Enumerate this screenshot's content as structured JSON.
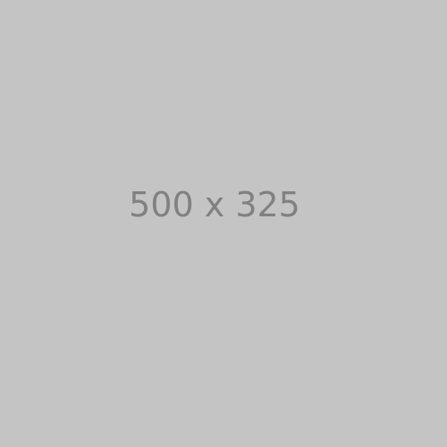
{
  "placeholder": {
    "label": "500 x 325",
    "background_color": "#c4c4c4",
    "text_color": "#818181"
  }
}
